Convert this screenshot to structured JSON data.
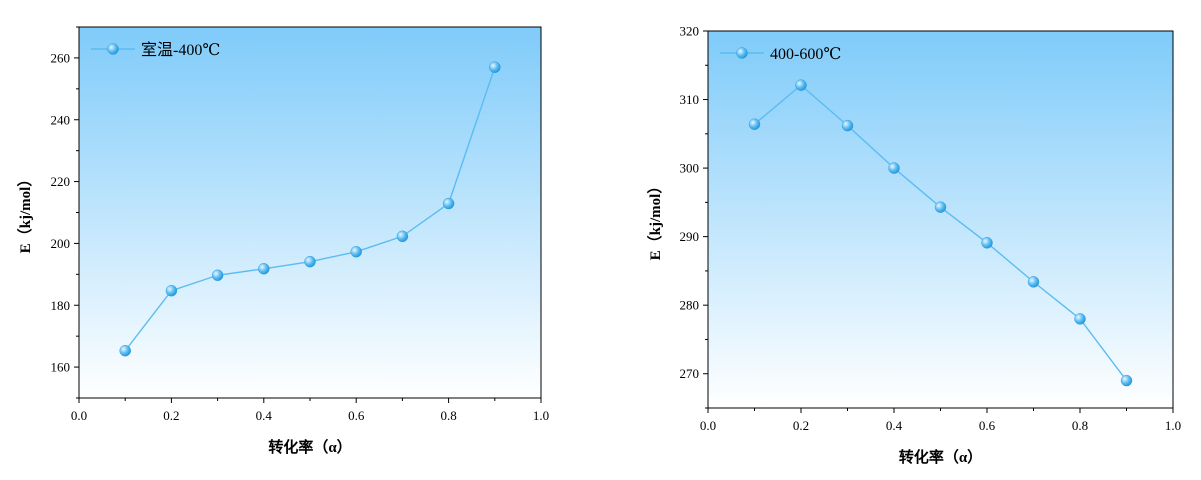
{
  "colors": {
    "line": "#5bbcf2",
    "gradient_top": "#7fcbfa",
    "gradient_bottom": "#ffffff",
    "marker_light": "#e8f7ff",
    "marker_dark": "#1f95d8"
  },
  "chart_data": [
    {
      "type": "line",
      "title": "",
      "xlabel": "转化率（α）",
      "ylabel": "E（kj/mol）",
      "xlim": [
        0.0,
        1.0
      ],
      "ylim": [
        150,
        270
      ],
      "x_ticks": [
        "0.0",
        "0.2",
        "0.4",
        "0.6",
        "0.8",
        "1.0"
      ],
      "y_ticks": [
        "160",
        "180",
        "200",
        "220",
        "240",
        "260"
      ],
      "legend_position": "top-left",
      "grid": false,
      "series": [
        {
          "name": "室温-400℃",
          "x": [
            0.1,
            0.2,
            0.3,
            0.4,
            0.5,
            0.6,
            0.7,
            0.8,
            0.9
          ],
          "y": [
            165.3,
            184.7,
            189.7,
            191.8,
            194.1,
            197.3,
            202.3,
            212.9,
            257.0
          ]
        }
      ]
    },
    {
      "type": "line",
      "title": "",
      "xlabel": "转化率（α）",
      "ylabel": "E（kj/mol）",
      "xlim": [
        0.0,
        1.0
      ],
      "ylim": [
        265,
        320
      ],
      "x_ticks": [
        "0.0",
        "0.2",
        "0.4",
        "0.6",
        "0.8",
        "1.0"
      ],
      "y_ticks": [
        "270",
        "280",
        "290",
        "300",
        "310",
        "320"
      ],
      "legend_position": "top-left",
      "grid": false,
      "series": [
        {
          "name": "400-600℃",
          "x": [
            0.1,
            0.2,
            0.3,
            0.4,
            0.5,
            0.6,
            0.7,
            0.8,
            0.9
          ],
          "y": [
            306.4,
            312.1,
            306.2,
            300.0,
            294.3,
            289.1,
            283.4,
            278.0,
            269.0
          ]
        }
      ]
    }
  ]
}
